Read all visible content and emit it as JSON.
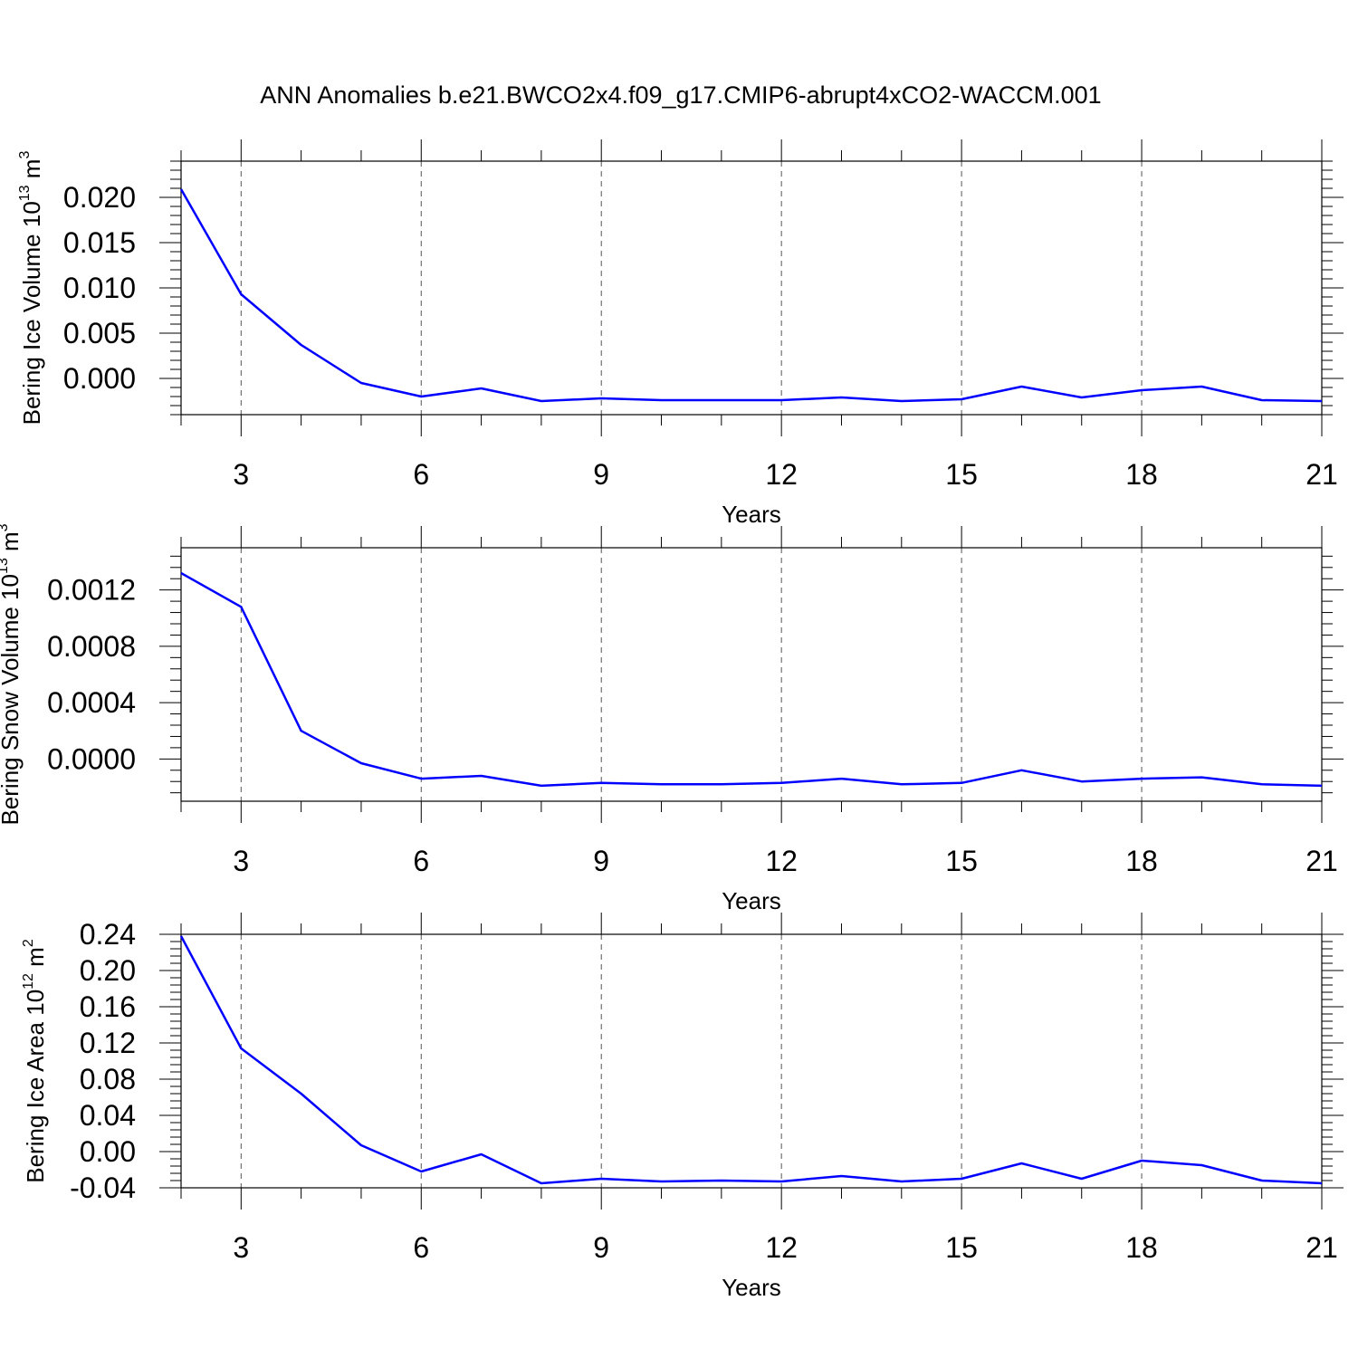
{
  "title": "ANN Anomalies b.e21.BWCO2x4.f09_g17.CMIP6-abrupt4xCO2-WACCM.001",
  "colors": {
    "series": "#0000ff",
    "axes": "#000000",
    "grid": "#555555"
  },
  "chart_data": [
    {
      "type": "line",
      "ylabel": {
        "text": "Bering Ice Volume 10",
        "exp": "13",
        "unit": " m",
        "unit_exp": "3"
      },
      "xlabel": "Years",
      "xlim": [
        2,
        21
      ],
      "ylim": [
        -0.004,
        0.024
      ],
      "x_ticks": [
        "3",
        "6",
        "9",
        "12",
        "15",
        "18",
        "21"
      ],
      "y_ticks": [
        "0.000",
        "0.005",
        "0.010",
        "0.015",
        "0.020"
      ],
      "x": [
        2,
        3,
        4,
        5,
        6,
        7,
        8,
        9,
        10,
        11,
        12,
        13,
        14,
        15,
        16,
        17,
        18,
        19,
        20,
        21
      ],
      "y": [
        0.0209,
        0.0093,
        0.0037,
        -0.0005,
        -0.002,
        -0.0011,
        -0.0025,
        -0.0022,
        -0.0024,
        -0.0024,
        -0.0024,
        -0.0021,
        -0.0025,
        -0.0023,
        -0.0009,
        -0.0021,
        -0.0013,
        -0.0009,
        -0.0024,
        -0.0025
      ]
    },
    {
      "type": "line",
      "ylabel": {
        "text": "Bering Snow Volume 10",
        "exp": "13",
        "unit": " m",
        "unit_exp": "3"
      },
      "xlabel": "Years",
      "xlim": [
        2,
        21
      ],
      "ylim": [
        -0.0003,
        0.0015
      ],
      "x_ticks": [
        "3",
        "6",
        "9",
        "12",
        "15",
        "18",
        "21"
      ],
      "y_ticks": [
        "0.0000",
        "0.0004",
        "0.0008",
        "0.0012"
      ],
      "x": [
        2,
        3,
        4,
        5,
        6,
        7,
        8,
        9,
        10,
        11,
        12,
        13,
        14,
        15,
        16,
        17,
        18,
        19,
        20,
        21
      ],
      "y": [
        0.00132,
        0.00108,
        0.0002,
        -3e-05,
        -0.00014,
        -0.00012,
        -0.00019,
        -0.00017,
        -0.00018,
        -0.00018,
        -0.00017,
        -0.00014,
        -0.00018,
        -0.00017,
        -8e-05,
        -0.00016,
        -0.00014,
        -0.00013,
        -0.00018,
        -0.00019
      ]
    },
    {
      "type": "line",
      "ylabel": {
        "text": "Bering Ice Area 10",
        "exp": "12",
        "unit": " m",
        "unit_exp": "2"
      },
      "xlabel": "Years",
      "xlim": [
        2,
        21
      ],
      "ylim": [
        -0.04,
        0.24
      ],
      "x_ticks": [
        "3",
        "6",
        "9",
        "12",
        "15",
        "18",
        "21"
      ],
      "y_ticks": [
        "-0.04",
        "0.00",
        "0.04",
        "0.08",
        "0.12",
        "0.16",
        "0.20",
        "0.24"
      ],
      "x": [
        2,
        3,
        4,
        5,
        6,
        7,
        8,
        9,
        10,
        11,
        12,
        13,
        14,
        15,
        16,
        17,
        18,
        19,
        20,
        21
      ],
      "y": [
        0.238,
        0.114,
        0.064,
        0.007,
        -0.022,
        -0.003,
        -0.035,
        -0.03,
        -0.033,
        -0.032,
        -0.033,
        -0.027,
        -0.033,
        -0.03,
        -0.013,
        -0.03,
        -0.01,
        -0.015,
        -0.032,
        -0.035
      ]
    }
  ]
}
